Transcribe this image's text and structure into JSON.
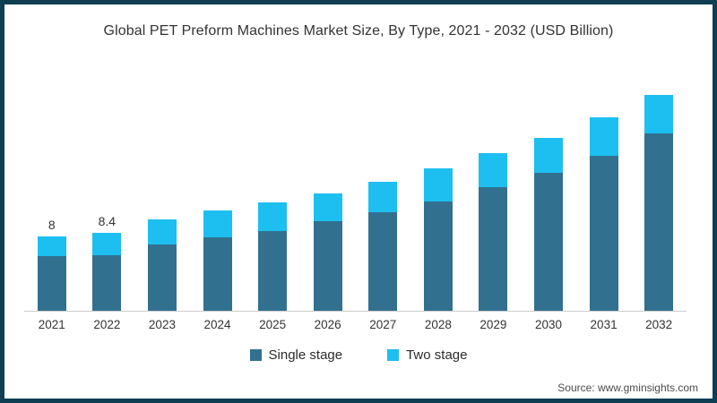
{
  "frame": {
    "border_color": "#0f3d52",
    "background_color": "#ffffff",
    "axis_line_color": "#cccccc",
    "text_color": "#333333"
  },
  "title": "Global PET Preform Machines Market Size, By Type, 2021 - 2032 (USD Billion)",
  "source": "Source: www.gminsights.com",
  "legend": [
    {
      "label": "Single stage",
      "color": "#32708f"
    },
    {
      "label": "Two stage",
      "color": "#1dbff0"
    }
  ],
  "chart_data": {
    "type": "bar",
    "stacked": true,
    "title": "Global PET Preform Machines Market Size, By Type, 2021 - 2032 (USD Billion)",
    "unit": "USD Billion",
    "categories": [
      "2021",
      "2022",
      "2023",
      "2024",
      "2025",
      "2026",
      "2027",
      "2028",
      "2029",
      "2030",
      "2031",
      "2032"
    ],
    "series": [
      {
        "name": "Single stage",
        "color": "#32708f",
        "values": [
          5.9,
          6.0,
          7.1,
          7.9,
          8.6,
          9.6,
          10.6,
          11.8,
          13.3,
          14.8,
          16.7,
          19.1
        ]
      },
      {
        "name": "Two stage",
        "color": "#1dbff0",
        "values": [
          2.1,
          2.4,
          2.7,
          2.9,
          3.1,
          3.0,
          3.3,
          3.5,
          3.7,
          3.8,
          4.1,
          4.1
        ]
      }
    ],
    "totals": [
      8.0,
      8.4,
      9.8,
      10.8,
      11.7,
      12.6,
      13.9,
      15.3,
      17.0,
      18.6,
      20.8,
      23.2
    ],
    "data_labels": {
      "2021": "8",
      "2022": "8.4"
    },
    "xlabel": "",
    "ylabel": "",
    "ylim": [
      0,
      25
    ],
    "grid": false,
    "legend_position": "bottom"
  }
}
